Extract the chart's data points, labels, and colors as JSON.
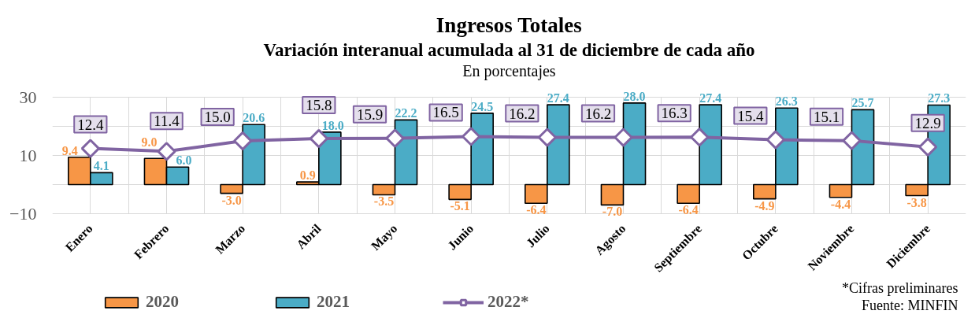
{
  "chart_data": {
    "type": "bar",
    "title": "Ingresos Totales",
    "subtitle": "Variación interanual acumulada al 31 de diciembre de cada año",
    "ylabel": "En porcentajes",
    "annotations": [
      "*Cifras preliminares",
      "Fuente: MINFIN"
    ],
    "categories": [
      "Enero",
      "Febrero",
      "Marzo",
      "Abril",
      "Mayo",
      "Junio",
      "Julio",
      "Agosto",
      "Septiembre",
      "Octubre",
      "Noviembre",
      "Diciembre"
    ],
    "series": [
      {
        "name": "2020",
        "color": "#f79646",
        "values": [
          9.4,
          9.0,
          -3.0,
          0.9,
          -3.5,
          -5.1,
          -6.4,
          -7.0,
          -6.4,
          -4.9,
          -4.4,
          -3.8
        ],
        "value_labels": [
          "9.4",
          "9.0",
          "-3.0",
          "0.9",
          "-3.5",
          "-5.1",
          "-6.4",
          "-7.0",
          "-6.4",
          "-4.9",
          "-4.4",
          "-3.8"
        ]
      },
      {
        "name": "2021",
        "color": "#4bacc6",
        "values": [
          4.1,
          6.0,
          20.6,
          18.0,
          22.2,
          24.5,
          27.4,
          28.0,
          27.4,
          26.3,
          25.7,
          27.3
        ],
        "value_labels": [
          "4.1",
          "6.0",
          "20.6",
          "18.0",
          "22.2",
          "24.5",
          "27.4",
          "28.0",
          "27.4",
          "26.3",
          "25.7",
          "27.3"
        ]
      },
      {
        "name": "2022*",
        "type": "line",
        "color": "#8064a2",
        "values": [
          12.4,
          11.4,
          15.0,
          15.8,
          15.9,
          16.5,
          16.2,
          16.2,
          16.3,
          15.4,
          15.1,
          12.9
        ],
        "value_labels": [
          "12.4",
          "11.4",
          "15.0",
          "15.8",
          "15.9",
          "16.5",
          "16.2",
          "16.2",
          "16.3",
          "15.4",
          "15.1",
          "12.9"
        ]
      }
    ],
    "ylim": [
      -10,
      30
    ],
    "yticks": [
      -10,
      {
        "value": 0,
        "label": null
      },
      10,
      {
        "value": 20,
        "label": null
      },
      30
    ],
    "grid": true,
    "legend": "bottom",
    "marker": "diamond",
    "line_style": "solid"
  }
}
